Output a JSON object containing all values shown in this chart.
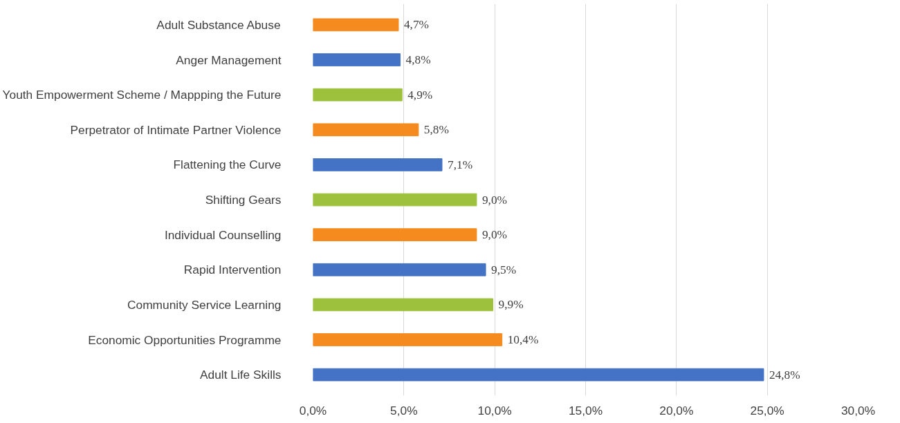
{
  "chart_data": {
    "type": "bar",
    "orientation": "horizontal",
    "categories": [
      "Adult Substance Abuse",
      "Anger Management",
      "Youth Empowerment Scheme / Mappping the Future",
      "Perpetrator of Intimate Partner Violence",
      "Flattening the Curve",
      "Shifting Gears",
      "Individual Counselling",
      "Rapid Intervention",
      "Community Service Learning",
      "Economic Opportunities Programme",
      "Adult Life Skills"
    ],
    "values": [
      4.7,
      4.8,
      4.9,
      5.8,
      7.1,
      9.0,
      9.0,
      9.5,
      9.9,
      10.4,
      24.8
    ],
    "value_labels": [
      "4,7%",
      "4,8%",
      "4,9%",
      "5,8%",
      "7,1%",
      "9,0%",
      "9,0%",
      "9,5%",
      "9,9%",
      "10,4%",
      "24,8%"
    ],
    "colors": [
      "#f58a1f",
      "#4472c4",
      "#9dc13c",
      "#f58a1f",
      "#4472c4",
      "#9dc13c",
      "#f58a1f",
      "#4472c4",
      "#9dc13c",
      "#f58a1f",
      "#4472c4"
    ],
    "xlim": [
      0,
      30
    ],
    "xticks": [
      {
        "value": 0,
        "label": "0,0%"
      },
      {
        "value": 5,
        "label": "5,0%"
      },
      {
        "value": 10,
        "label": "10,0%"
      },
      {
        "value": 15,
        "label": "15,0%"
      },
      {
        "value": 20,
        "label": "20,0%"
      },
      {
        "value": 25,
        "label": "25,0%"
      },
      {
        "value": 30,
        "label": "30,0%"
      }
    ],
    "grid": "x"
  }
}
